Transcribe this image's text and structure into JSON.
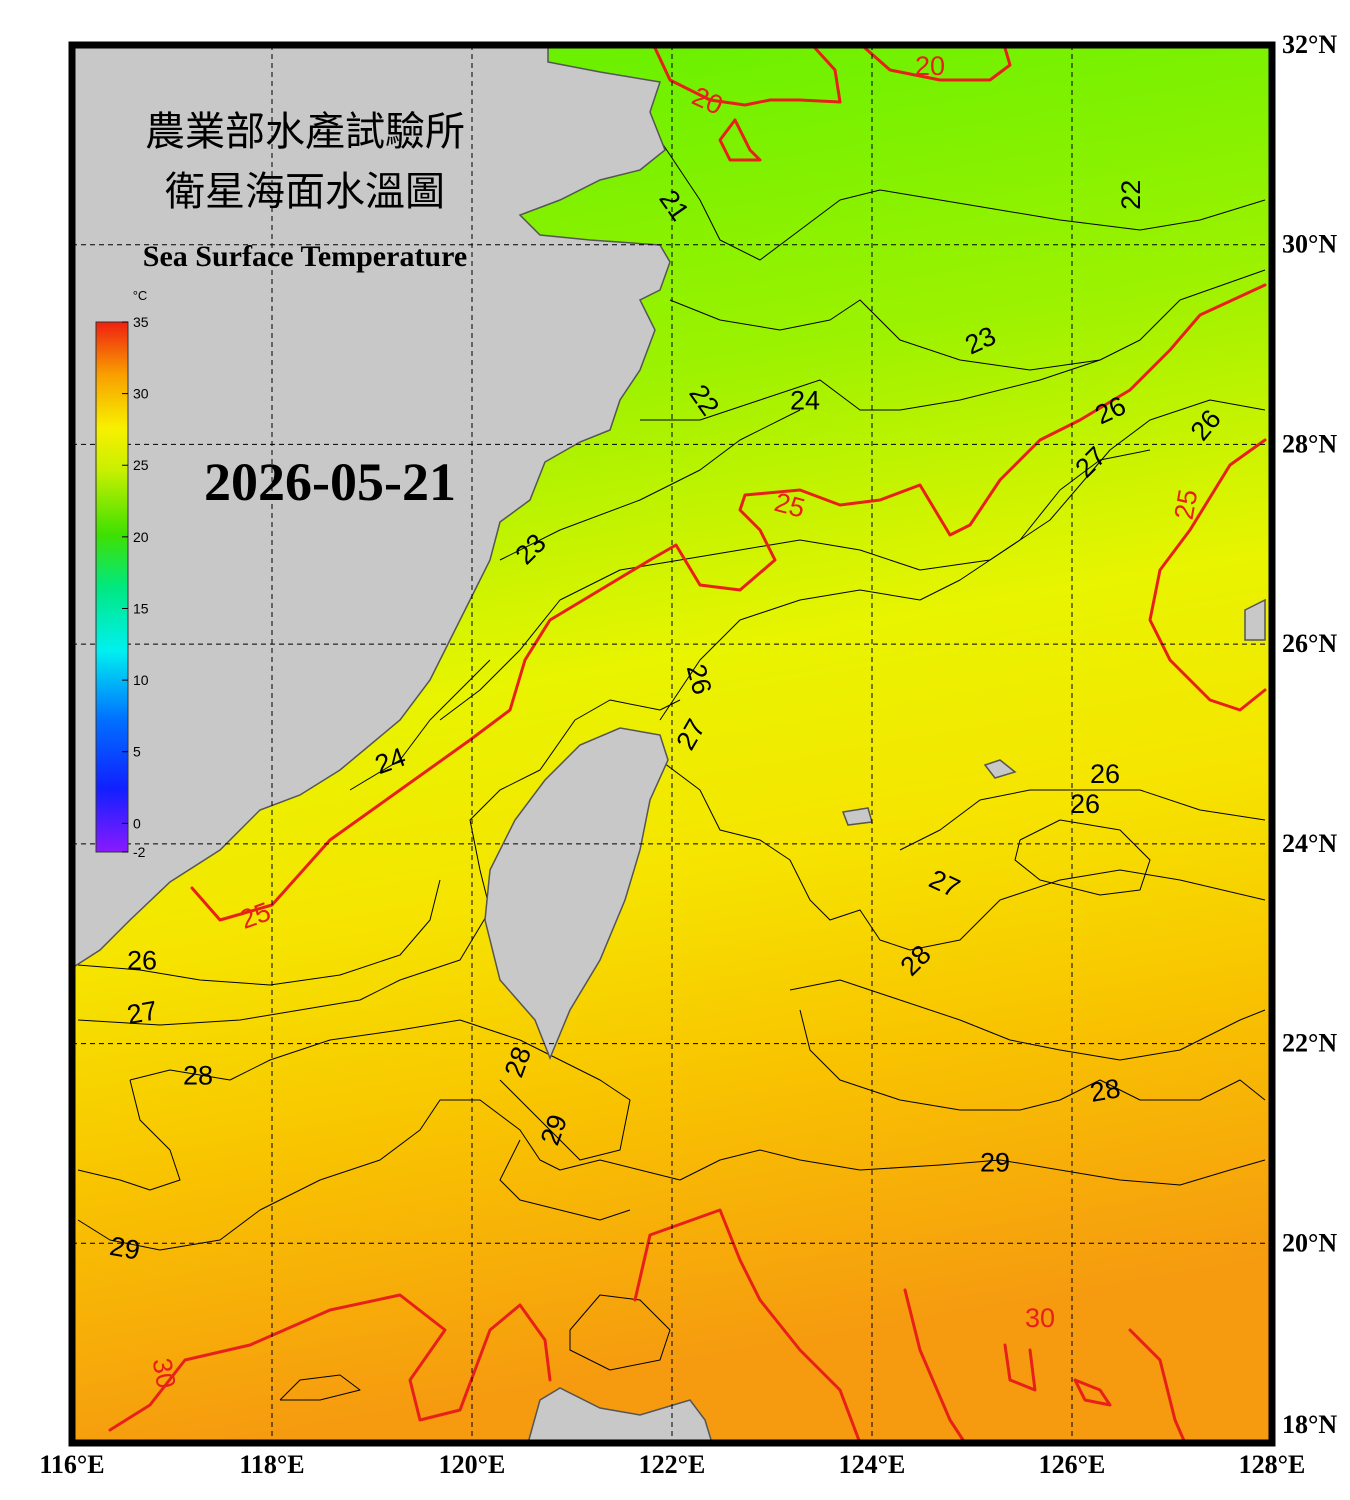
{
  "header": {
    "title_zh_1": "農業部水產試驗所",
    "title_zh_2": "衛星海面水溫圖",
    "title_en": "Sea Surface Temperature",
    "date": "2026-05-21"
  },
  "map": {
    "lon_range": [
      116,
      128
    ],
    "lat_range": [
      18,
      32
    ],
    "lon_ticks": [
      {
        "value": 116,
        "label": "116°E"
      },
      {
        "value": 118,
        "label": "118°E"
      },
      {
        "value": 120,
        "label": "120°E"
      },
      {
        "value": 122,
        "label": "122°E"
      },
      {
        "value": 124,
        "label": "124°E"
      },
      {
        "value": 126,
        "label": "126°E"
      },
      {
        "value": 128,
        "label": "128°E"
      }
    ],
    "lat_ticks": [
      {
        "value": 18,
        "label": "18°N"
      },
      {
        "value": 20,
        "label": "20°N"
      },
      {
        "value": 22,
        "label": "22°N"
      },
      {
        "value": 24,
        "label": "24°N"
      },
      {
        "value": 26,
        "label": "26°N"
      },
      {
        "value": 28,
        "label": "28°N"
      },
      {
        "value": 30,
        "label": "30°N"
      },
      {
        "value": 32,
        "label": "32°N"
      }
    ],
    "contour_labels": [
      {
        "text": "20",
        "lon": 124.58,
        "lat": 31.8,
        "color": "#e8201a"
      },
      {
        "text": "20",
        "lon": 122.36,
        "lat": 31.45,
        "color": "#e8201a"
      },
      {
        "text": "21",
        "lon": 122.03,
        "lat": 30.4,
        "color": "#000000"
      },
      {
        "text": "22",
        "lon": 126.58,
        "lat": 30.5,
        "color": "#000000"
      },
      {
        "text": "23",
        "lon": 125.08,
        "lat": 29.05,
        "color": "#000000"
      },
      {
        "text": "24",
        "lon": 123.33,
        "lat": 28.45,
        "color": "#000000"
      },
      {
        "text": "22",
        "lon": 122.33,
        "lat": 28.45,
        "color": "#000000"
      },
      {
        "text": "26",
        "lon": 126.38,
        "lat": 28.35,
        "color": "#000000"
      },
      {
        "text": "26",
        "lon": 127.33,
        "lat": 28.2,
        "color": "#000000"
      },
      {
        "text": "27",
        "lon": 126.18,
        "lat": 27.83,
        "color": "#000000"
      },
      {
        "text": "25",
        "lon": 123.18,
        "lat": 27.4,
        "color": "#e8201a"
      },
      {
        "text": "25",
        "lon": 127.13,
        "lat": 27.4,
        "color": "#e8201a"
      },
      {
        "text": "23",
        "lon": 120.58,
        "lat": 26.96,
        "color": "#000000"
      },
      {
        "text": "26",
        "lon": 122.28,
        "lat": 25.65,
        "color": "#000000"
      },
      {
        "text": "27",
        "lon": 122.18,
        "lat": 25.1,
        "color": "#000000"
      },
      {
        "text": "24",
        "lon": 119.18,
        "lat": 24.84,
        "color": "#000000"
      },
      {
        "text": "26",
        "lon": 126.33,
        "lat": 24.71,
        "color": "#000000"
      },
      {
        "text": "26",
        "lon": 126.13,
        "lat": 24.41,
        "color": "#000000"
      },
      {
        "text": "27",
        "lon": 124.73,
        "lat": 23.61,
        "color": "#000000"
      },
      {
        "text": "25",
        "lon": 117.83,
        "lat": 23.29,
        "color": "#e8201a"
      },
      {
        "text": "28",
        "lon": 124.43,
        "lat": 22.84,
        "color": "#000000"
      },
      {
        "text": "26",
        "lon": 116.7,
        "lat": 22.84,
        "color": "#000000"
      },
      {
        "text": "27",
        "lon": 116.7,
        "lat": 22.32,
        "color": "#000000"
      },
      {
        "text": "28",
        "lon": 117.26,
        "lat": 21.69,
        "color": "#000000"
      },
      {
        "text": "28",
        "lon": 120.45,
        "lat": 21.82,
        "color": "#000000"
      },
      {
        "text": "28",
        "lon": 126.33,
        "lat": 21.54,
        "color": "#000000"
      },
      {
        "text": "29",
        "lon": 120.81,
        "lat": 21.14,
        "color": "#000000"
      },
      {
        "text": "29",
        "lon": 125.23,
        "lat": 20.82,
        "color": "#000000"
      },
      {
        "text": "29",
        "lon": 116.53,
        "lat": 19.96,
        "color": "#000000"
      },
      {
        "text": "30",
        "lon": 125.68,
        "lat": 19.26,
        "color": "#e8201a"
      },
      {
        "text": "30",
        "lon": 116.93,
        "lat": 18.7,
        "color": "#e8201a"
      }
    ]
  },
  "colorbar": {
    "unit": "°C",
    "range": [
      -2,
      35
    ],
    "ticks": [
      35,
      30,
      25,
      20,
      15,
      10,
      5,
      0,
      -2
    ]
  }
}
